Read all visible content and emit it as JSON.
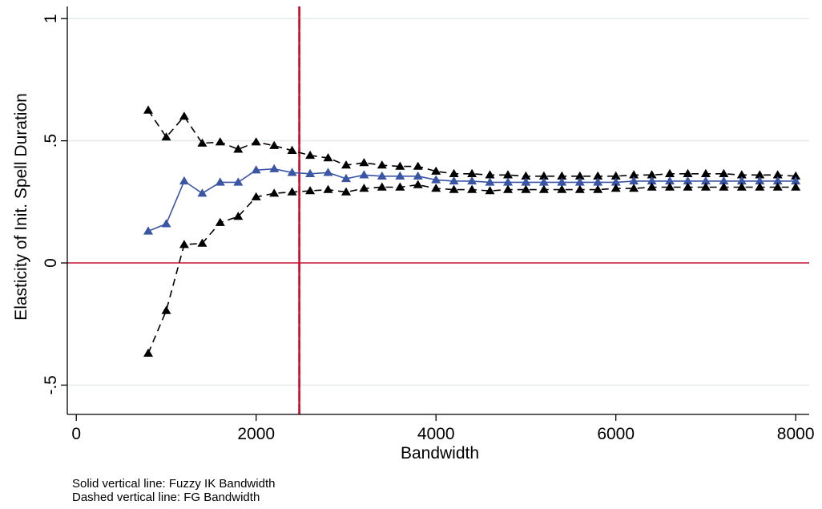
{
  "chart_data": {
    "type": "line",
    "xlabel": "Bandwidth",
    "ylabel": "Elasticity of Init. Spell Duration",
    "xlim": [
      -100,
      8150
    ],
    "ylim": [
      -0.62,
      1.05
    ],
    "xticks": [
      0,
      2000,
      4000,
      6000,
      8000
    ],
    "xtick_labels": [
      "0",
      "2000",
      "4000",
      "6000",
      "8000"
    ],
    "yticks": [
      -0.5,
      0,
      0.5,
      1
    ],
    "ytick_labels": [
      "-.5",
      "0",
      ".5",
      "1"
    ],
    "grid": "horizontal at y ticks",
    "reference_lines": {
      "horizontal_y": 0,
      "vertical_x": 2480
    },
    "x": [
      800,
      1000,
      1200,
      1400,
      1600,
      1800,
      2000,
      2200,
      2400,
      2600,
      2800,
      3000,
      3200,
      3400,
      3600,
      3800,
      4000,
      4200,
      4400,
      4600,
      4800,
      5000,
      5200,
      5400,
      5600,
      5800,
      6000,
      6200,
      6400,
      6600,
      6800,
      7000,
      7200,
      7400,
      7600,
      7800,
      8000
    ],
    "series": [
      {
        "role": "upper confidence bound",
        "style": "dashed",
        "color": "#000000",
        "values": [
          0.625,
          0.515,
          0.6,
          0.49,
          0.495,
          0.465,
          0.495,
          0.48,
          0.46,
          0.44,
          0.43,
          0.4,
          0.41,
          0.4,
          0.395,
          0.395,
          0.375,
          0.365,
          0.365,
          0.36,
          0.36,
          0.355,
          0.355,
          0.355,
          0.355,
          0.355,
          0.355,
          0.36,
          0.36,
          0.365,
          0.365,
          0.365,
          0.365,
          0.36,
          0.36,
          0.36,
          0.355
        ]
      },
      {
        "role": "point estimate",
        "style": "solid",
        "color": "#3a55a4",
        "values": [
          0.13,
          0.16,
          0.335,
          0.285,
          0.33,
          0.33,
          0.38,
          0.385,
          0.37,
          0.365,
          0.37,
          0.345,
          0.36,
          0.355,
          0.355,
          0.355,
          0.34,
          0.335,
          0.335,
          0.33,
          0.33,
          0.33,
          0.33,
          0.33,
          0.33,
          0.33,
          0.33,
          0.335,
          0.335,
          0.335,
          0.335,
          0.335,
          0.335,
          0.335,
          0.335,
          0.335,
          0.335
        ]
      },
      {
        "role": "lower confidence bound",
        "style": "dashed",
        "color": "#000000",
        "values": [
          -0.37,
          -0.195,
          0.075,
          0.08,
          0.165,
          0.19,
          0.27,
          0.285,
          0.29,
          0.295,
          0.3,
          0.29,
          0.305,
          0.31,
          0.31,
          0.32,
          0.305,
          0.3,
          0.3,
          0.295,
          0.3,
          0.3,
          0.3,
          0.3,
          0.3,
          0.3,
          0.305,
          0.305,
          0.31,
          0.31,
          0.31,
          0.31,
          0.31,
          0.31,
          0.31,
          0.31,
          0.31
        ]
      }
    ],
    "colors": {
      "zero_line": "#c8102e",
      "vertical_line": "#c8102e",
      "grid": "#e2ecec"
    }
  },
  "notes": [
    "Solid vertical line: Fuzzy IK Bandwidth",
    "Dashed vertical line: FG Bandwidth"
  ]
}
